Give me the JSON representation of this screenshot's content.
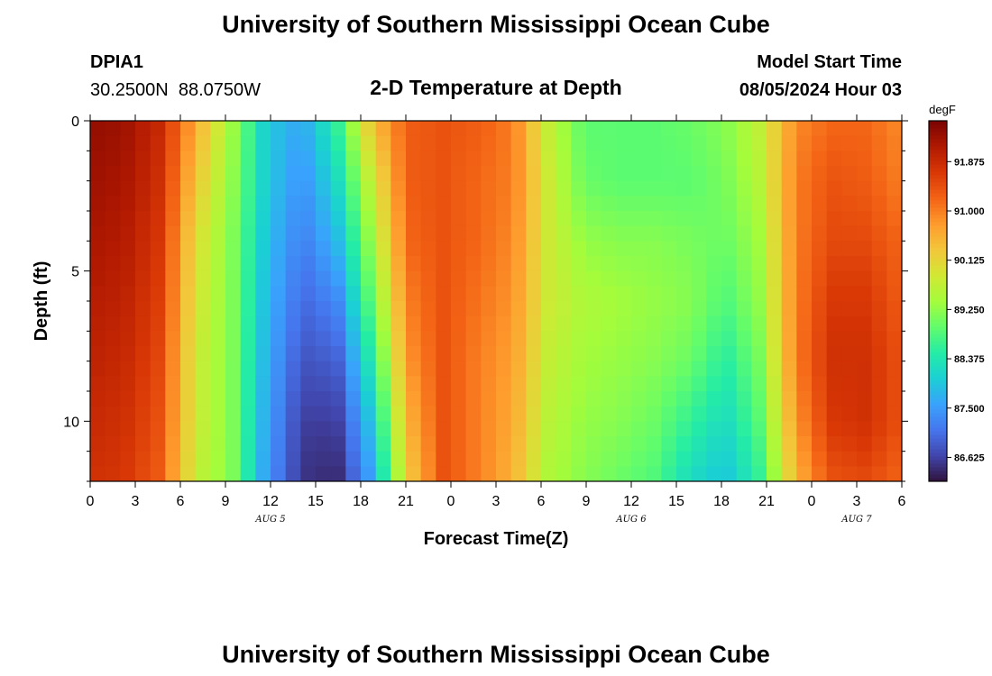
{
  "page": {
    "title": "University of Southern Mississippi Ocean Cube",
    "footer_title": "University of Southern Mississippi Ocean Cube",
    "station_id": "DPIA1",
    "station_coords": "30.2500N  88.0750W",
    "model_start_label": "Model Start Time",
    "model_start_value": "08/05/2024 Hour 03"
  },
  "chart_data": {
    "type": "heatmap",
    "title": "2-D Temperature at Depth",
    "xlabel": "Forecast Time(Z)",
    "ylabel": "Depth (ft)",
    "colorbar_label": "degF",
    "colorbar_ticks": [
      "86.625",
      "87.500",
      "88.375",
      "89.250",
      "90.125",
      "91.000",
      "91.875"
    ],
    "colorbar_tick_values": [
      86.625,
      87.5,
      88.375,
      89.25,
      90.125,
      91.0,
      91.875
    ],
    "color_range": [
      86.2,
      92.6
    ],
    "colormap": [
      "#30123b",
      "#4145ab",
      "#4675ed",
      "#39a2fc",
      "#1bcfd4",
      "#24eca6",
      "#61fc6c",
      "#a4fc3b",
      "#d1e834",
      "#f3c63a",
      "#fe9b2d",
      "#f36315",
      "#d93806",
      "#b11901",
      "#7a0402"
    ],
    "x_hours": [
      0,
      6,
      12,
      18,
      24,
      30,
      36,
      42,
      48,
      54
    ],
    "x_tick_labels": [
      "0",
      "3",
      "6",
      "9",
      "12",
      "15",
      "18",
      "21",
      "0",
      "3",
      "6",
      "9",
      "12",
      "15",
      "18",
      "21",
      "0",
      "3",
      "6"
    ],
    "x_range_hours": [
      0,
      54
    ],
    "date_labels": [
      {
        "text": "AUG 5",
        "hour": 12
      },
      {
        "text": "AUG 6",
        "hour": 36
      },
      {
        "text": "AUG 7",
        "hour": 51
      }
    ],
    "y_tick_labels": [
      "0",
      "5",
      "10"
    ],
    "y_tick_values": [
      0,
      5,
      10
    ],
    "y_range_ft": [
      0,
      12
    ],
    "depth_rows_ft": [
      0,
      2,
      4,
      6,
      8,
      10,
      12
    ],
    "temperature_degF": [
      [
        92.4,
        92.3,
        91.9,
        90.6,
        89.4,
        88.0,
        87.6,
        88.6,
        90.4,
        91.3,
        91.4,
        91.3,
        91.0,
        89.7,
        88.9,
        88.9,
        88.9,
        89.0,
        89.2,
        89.7,
        90.9,
        91.2,
        91.2,
        90.9
      ],
      [
        92.3,
        92.2,
        91.8,
        90.3,
        89.3,
        88.0,
        87.4,
        88.2,
        89.8,
        91.3,
        91.4,
        91.2,
        91.0,
        89.8,
        89.0,
        88.9,
        88.9,
        88.9,
        89.1,
        89.6,
        91.0,
        91.4,
        91.3,
        91.0
      ],
      [
        92.2,
        92.1,
        91.7,
        90.0,
        89.2,
        87.9,
        87.2,
        87.8,
        89.4,
        91.2,
        91.4,
        91.2,
        90.9,
        89.8,
        89.3,
        89.2,
        89.2,
        89.1,
        89.0,
        89.4,
        91.0,
        91.5,
        91.5,
        91.2
      ],
      [
        92.1,
        92.0,
        91.6,
        89.9,
        89.2,
        87.8,
        87.0,
        87.3,
        89.0,
        91.0,
        91.4,
        91.1,
        90.8,
        89.8,
        89.5,
        89.4,
        89.3,
        89.2,
        88.8,
        89.3,
        91.0,
        91.7,
        91.7,
        91.3
      ],
      [
        92.0,
        91.9,
        91.5,
        89.8,
        89.2,
        87.7,
        86.8,
        86.9,
        88.5,
        90.8,
        91.4,
        91.0,
        90.7,
        89.7,
        89.4,
        89.3,
        89.2,
        89.0,
        88.5,
        89.1,
        91.0,
        91.8,
        91.8,
        91.4
      ],
      [
        91.9,
        91.8,
        91.4,
        89.8,
        89.2,
        87.6,
        86.6,
        86.6,
        88.0,
        90.5,
        91.4,
        91.0,
        90.6,
        89.6,
        89.3,
        89.2,
        89.0,
        88.6,
        88.2,
        88.9,
        90.8,
        91.7,
        91.8,
        91.4
      ],
      [
        91.8,
        91.7,
        91.3,
        89.7,
        89.2,
        87.5,
        86.5,
        86.4,
        87.6,
        90.2,
        91.4,
        91.0,
        90.5,
        89.5,
        89.2,
        89.0,
        88.8,
        88.2,
        87.9,
        88.6,
        90.5,
        91.4,
        91.5,
        91.2
      ]
    ]
  }
}
